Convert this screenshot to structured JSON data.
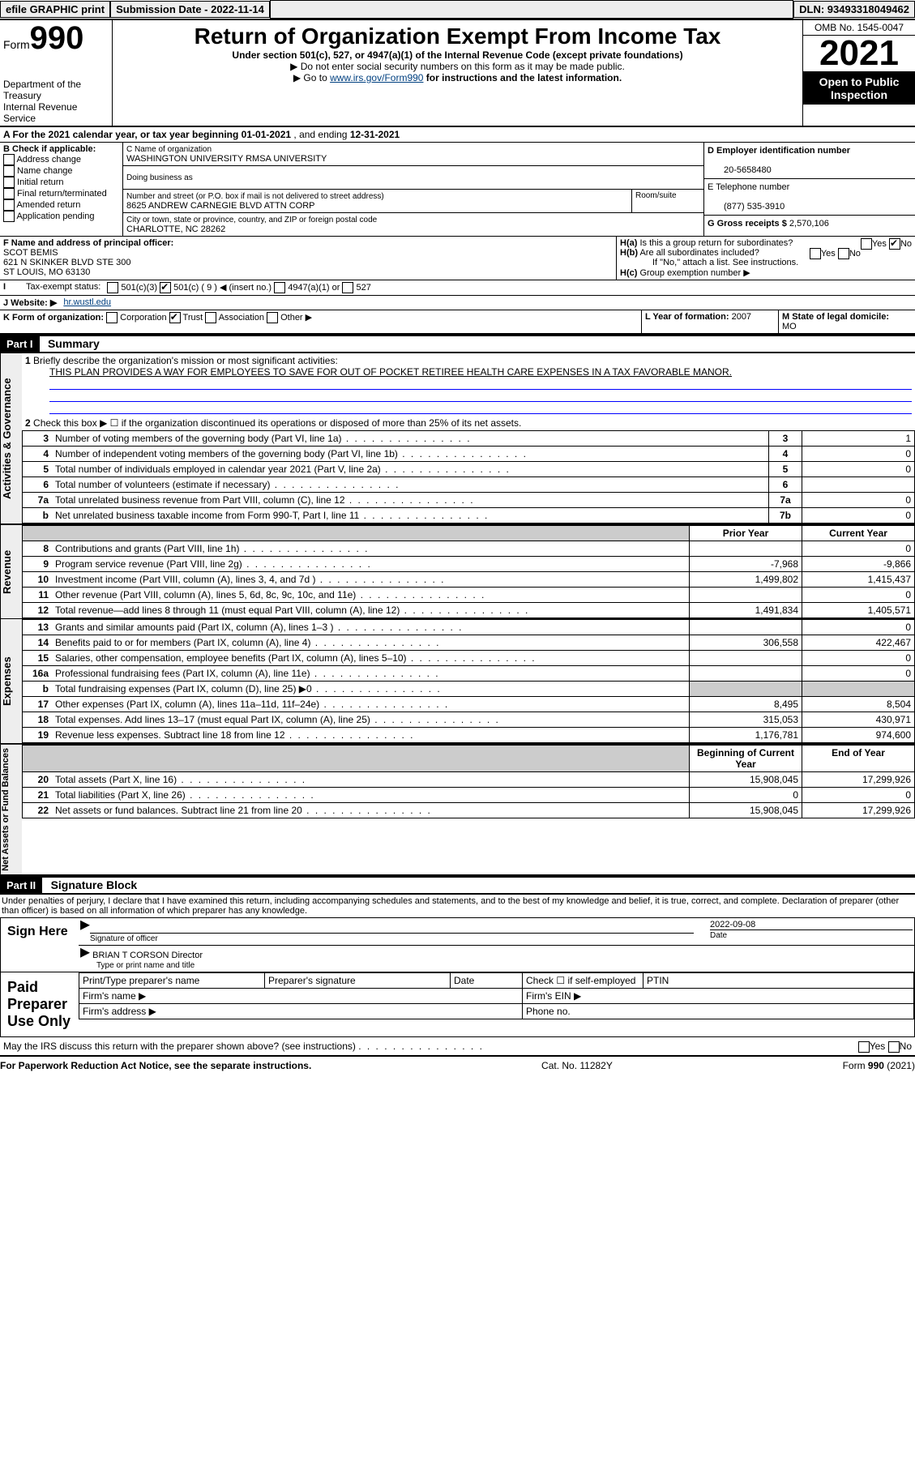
{
  "top": {
    "efile": "efile GRAPHIC print",
    "submission": "Submission Date - 2022-11-14",
    "dln": "DLN: 93493318049462"
  },
  "header": {
    "form_prefix": "Form",
    "form_num": "990",
    "dept": "Department of the Treasury\nInternal Revenue Service",
    "title": "Return of Organization Exempt From Income Tax",
    "sub1": "Under section 501(c), 527, or 4947(a)(1) of the Internal Revenue Code (except private foundations)",
    "sub2a": "Do not enter social security numbers on this form as it may be made public.",
    "sub2b_pre": "Go to ",
    "sub2b_link": "www.irs.gov/Form990",
    "sub2b_post": " for instructions and the latest information.",
    "omb": "OMB No. 1545-0047",
    "year": "2021",
    "open": "Open to Public Inspection"
  },
  "row_a": {
    "label": "A For the 2021 calendar year, or tax year beginning ",
    "begin": "01-01-2021",
    "mid": " , and ending ",
    "end": "12-31-2021"
  },
  "box_b": {
    "title": "B Check if applicable:",
    "opts": [
      "Address change",
      "Name change",
      "Initial return",
      "Final return/terminated",
      "Amended return",
      "Application pending"
    ]
  },
  "box_c": {
    "name_lbl": "C Name of organization",
    "name": "WASHINGTON UNIVERSITY RMSA UNIVERSITY",
    "dba_lbl": "Doing business as",
    "addr_lbl": "Number and street (or P.O. box if mail is not delivered to street address)",
    "addr": "8625 ANDREW CARNEGIE BLVD ATTN CORP",
    "room_lbl": "Room/suite",
    "city_lbl": "City or town, state or province, country, and ZIP or foreign postal code",
    "city": "CHARLOTTE, NC  28262"
  },
  "box_d": {
    "lbl": "D Employer identification number",
    "val": "20-5658480"
  },
  "box_e": {
    "lbl": "E Telephone number",
    "val": "(877) 535-3910"
  },
  "box_g": {
    "lbl": "G Gross receipts $",
    "val": "2,570,106"
  },
  "box_f": {
    "lbl": "F Name and address of principal officer:",
    "name": "SCOT BEMIS",
    "addr1": "621 N SKINKER BLVD STE 300",
    "addr2": "ST LOUIS, MO  63130"
  },
  "box_h": {
    "a_lbl": "Is this a group return for subordinates?",
    "a_val": "No",
    "b_lbl": "Are all subordinates included?",
    "note": "If \"No,\" attach a list. See instructions.",
    "c_lbl": "Group exemption number ▶"
  },
  "tax_status": {
    "lbl": "Tax-exempt status:",
    "opts": [
      "501(c)(3)",
      "501(c) ( 9 ) ◀ (insert no.)",
      "4947(a)(1) or",
      "527"
    ]
  },
  "website": {
    "lbl": "J Website: ▶",
    "val": "hr.wustl.edu"
  },
  "box_k": "K Form of organization:",
  "k_opts": [
    "Corporation",
    "Trust",
    "Association",
    "Other ▶"
  ],
  "box_l": {
    "lbl": "L Year of formation:",
    "val": "2007"
  },
  "box_m": {
    "lbl": "M State of legal domicile:",
    "val": "MO"
  },
  "part1": {
    "hdr": "Part I",
    "title": "Summary",
    "line1_lbl": "Briefly describe the organization's mission or most significant activities:",
    "line1_val": "THIS PLAN PROVIDES A WAY FOR EMPLOYEES TO SAVE FOR OUT OF POCKET RETIREE HEALTH CARE EXPENSES IN A TAX FAVORABLE MANOR.",
    "line2": "Check this box ▶ ☐ if the organization discontinued its operations or disposed of more than 25% of its net assets.",
    "rows_governance": [
      {
        "n": "3",
        "lbl": "Number of voting members of the governing body (Part VI, line 1a)",
        "box": "3",
        "val": "1"
      },
      {
        "n": "4",
        "lbl": "Number of independent voting members of the governing body (Part VI, line 1b)",
        "box": "4",
        "val": "0"
      },
      {
        "n": "5",
        "lbl": "Total number of individuals employed in calendar year 2021 (Part V, line 2a)",
        "box": "5",
        "val": "0"
      },
      {
        "n": "6",
        "lbl": "Total number of volunteers (estimate if necessary)",
        "box": "6",
        "val": ""
      },
      {
        "n": "7a",
        "lbl": "Total unrelated business revenue from Part VIII, column (C), line 12",
        "box": "7a",
        "val": "0"
      },
      {
        "n": "b",
        "lbl": "Net unrelated business taxable income from Form 990-T, Part I, line 11",
        "box": "7b",
        "val": "0"
      }
    ],
    "col_prior": "Prior Year",
    "col_curr": "Current Year",
    "rows_revenue": [
      {
        "n": "8",
        "lbl": "Contributions and grants (Part VIII, line 1h)",
        "p": "",
        "c": "0"
      },
      {
        "n": "9",
        "lbl": "Program service revenue (Part VIII, line 2g)",
        "p": "-7,968",
        "c": "-9,866"
      },
      {
        "n": "10",
        "lbl": "Investment income (Part VIII, column (A), lines 3, 4, and 7d )",
        "p": "1,499,802",
        "c": "1,415,437"
      },
      {
        "n": "11",
        "lbl": "Other revenue (Part VIII, column (A), lines 5, 6d, 8c, 9c, 10c, and 11e)",
        "p": "",
        "c": "0"
      },
      {
        "n": "12",
        "lbl": "Total revenue—add lines 8 through 11 (must equal Part VIII, column (A), line 12)",
        "p": "1,491,834",
        "c": "1,405,571"
      }
    ],
    "rows_expenses": [
      {
        "n": "13",
        "lbl": "Grants and similar amounts paid (Part IX, column (A), lines 1–3 )",
        "p": "",
        "c": "0"
      },
      {
        "n": "14",
        "lbl": "Benefits paid to or for members (Part IX, column (A), line 4)",
        "p": "306,558",
        "c": "422,467"
      },
      {
        "n": "15",
        "lbl": "Salaries, other compensation, employee benefits (Part IX, column (A), lines 5–10)",
        "p": "",
        "c": "0"
      },
      {
        "n": "16a",
        "lbl": "Professional fundraising fees (Part IX, column (A), line 11e)",
        "p": "",
        "c": "0"
      },
      {
        "n": "b",
        "lbl": "Total fundraising expenses (Part IX, column (D), line 25) ▶0",
        "p": "shade",
        "c": "shade"
      },
      {
        "n": "17",
        "lbl": "Other expenses (Part IX, column (A), lines 11a–11d, 11f–24e)",
        "p": "8,495",
        "c": "8,504"
      },
      {
        "n": "18",
        "lbl": "Total expenses. Add lines 13–17 (must equal Part IX, column (A), line 25)",
        "p": "315,053",
        "c": "430,971"
      },
      {
        "n": "19",
        "lbl": "Revenue less expenses. Subtract line 18 from line 12",
        "p": "1,176,781",
        "c": "974,600"
      }
    ],
    "col_begin": "Beginning of Current Year",
    "col_end": "End of Year",
    "rows_net": [
      {
        "n": "20",
        "lbl": "Total assets (Part X, line 16)",
        "p": "15,908,045",
        "c": "17,299,926"
      },
      {
        "n": "21",
        "lbl": "Total liabilities (Part X, line 26)",
        "p": "0",
        "c": "0"
      },
      {
        "n": "22",
        "lbl": "Net assets or fund balances. Subtract line 21 from line 20",
        "p": "15,908,045",
        "c": "17,299,926"
      }
    ]
  },
  "part2": {
    "hdr": "Part II",
    "title": "Signature Block",
    "decl": "Under penalties of perjury, I declare that I have examined this return, including accompanying schedules and statements, and to the best of my knowledge and belief, it is true, correct, and complete. Declaration of preparer (other than officer) is based on all information of which preparer has any knowledge.",
    "sign_here": "Sign Here",
    "sig_officer": "Signature of officer",
    "sig_date": "2022-09-08",
    "date_lbl": "Date",
    "officer_name": "BRIAN T CORSON  Director",
    "type_lbl": "Type or print name and title",
    "paid": "Paid Preparer Use Only",
    "prep_name": "Print/Type preparer's name",
    "prep_sig": "Preparer's signature",
    "check_self": "Check ☐ if self-employed",
    "ptin": "PTIN",
    "firm_name": "Firm's name ▶",
    "firm_ein": "Firm's EIN ▶",
    "firm_addr": "Firm's address ▶",
    "phone": "Phone no.",
    "may_irs": "May the IRS discuss this return with the preparer shown above? (see instructions)",
    "footer_left": "For Paperwork Reduction Act Notice, see the separate instructions.",
    "footer_mid": "Cat. No. 11282Y",
    "footer_right": "Form 990 (2021)"
  }
}
